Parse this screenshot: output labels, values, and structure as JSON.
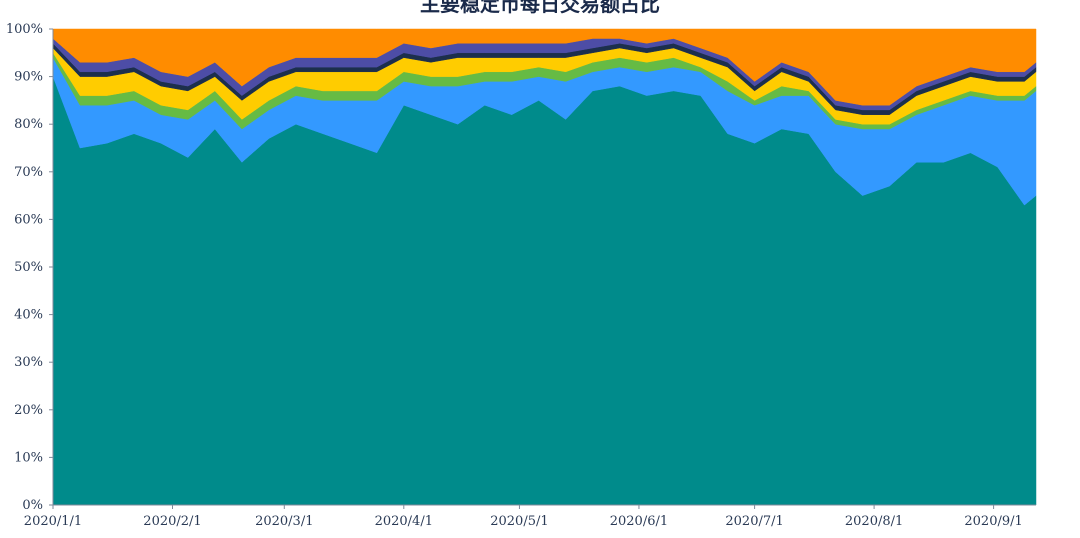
{
  "chart_data": {
    "type": "area",
    "stacked": "percent",
    "title": "主要稳定币每日交易额占比",
    "xlabel": "",
    "ylabel": "",
    "ylim": [
      0,
      100
    ],
    "y_ticks": [
      "0%",
      "10%",
      "20%",
      "30%",
      "40%",
      "50%",
      "60%",
      "70%",
      "80%",
      "90%",
      "100%"
    ],
    "x_range": [
      "2020-01-01",
      "2020-09-12"
    ],
    "x_ticks": [
      {
        "date": "2020-01-01",
        "label": "2020/1/1"
      },
      {
        "date": "2020-02-01",
        "label": "2020/2/1"
      },
      {
        "date": "2020-03-01",
        "label": "2020/3/1"
      },
      {
        "date": "2020-04-01",
        "label": "2020/4/1"
      },
      {
        "date": "2020-05-01",
        "label": "2020/5/1"
      },
      {
        "date": "2020-06-01",
        "label": "2020/6/1"
      },
      {
        "date": "2020-07-01",
        "label": "2020/7/1"
      },
      {
        "date": "2020-08-01",
        "label": "2020/8/1"
      },
      {
        "date": "2020-09-01",
        "label": "2020/9/1"
      }
    ],
    "grid": false,
    "legend": "none",
    "x": [
      "2020-01-01",
      "2020-01-08",
      "2020-01-15",
      "2020-01-22",
      "2020-01-29",
      "2020-02-05",
      "2020-02-12",
      "2020-02-19",
      "2020-02-26",
      "2020-03-04",
      "2020-03-11",
      "2020-03-18",
      "2020-03-25",
      "2020-04-01",
      "2020-04-08",
      "2020-04-15",
      "2020-04-22",
      "2020-04-29",
      "2020-05-06",
      "2020-05-13",
      "2020-05-20",
      "2020-05-27",
      "2020-06-03",
      "2020-06-10",
      "2020-06-17",
      "2020-06-24",
      "2020-07-01",
      "2020-07-08",
      "2020-07-15",
      "2020-07-22",
      "2020-07-29",
      "2020-08-05",
      "2020-08-12",
      "2020-08-19",
      "2020-08-26",
      "2020-09-02",
      "2020-09-09",
      "2020-09-12"
    ],
    "series": [
      {
        "color": "#008b8b",
        "values": [
          90,
          75,
          76,
          78,
          76,
          73,
          79,
          72,
          77,
          80,
          78,
          76,
          74,
          84,
          82,
          80,
          84,
          82,
          85,
          81,
          87,
          88,
          86,
          87,
          86,
          78,
          76,
          79,
          78,
          70,
          65,
          67,
          72,
          72,
          74,
          71,
          63,
          65
        ]
      },
      {
        "color": "#3399ff",
        "values": [
          4,
          9,
          8,
          7,
          6,
          8,
          6,
          7,
          6,
          6,
          7,
          9,
          11,
          5,
          6,
          8,
          5,
          7,
          5,
          8,
          4,
          4,
          5,
          5,
          5,
          9,
          8,
          7,
          8,
          10,
          14,
          12,
          10,
          12,
          12,
          14,
          22,
          22
        ]
      },
      {
        "color": "#66bb44",
        "values": [
          1,
          2,
          2,
          2,
          2,
          2,
          2,
          2,
          2,
          2,
          2,
          2,
          2,
          2,
          2,
          2,
          2,
          2,
          2,
          2,
          2,
          2,
          2,
          2,
          1,
          2,
          1,
          2,
          1,
          1,
          1,
          1,
          1,
          1,
          1,
          1,
          1,
          1
        ]
      },
      {
        "color": "#ffcc00",
        "values": [
          1,
          4,
          4,
          4,
          4,
          4,
          3,
          4,
          4,
          3,
          4,
          4,
          4,
          3,
          3,
          4,
          3,
          3,
          2,
          3,
          2,
          2,
          2,
          2,
          2,
          3,
          2,
          3,
          2,
          2,
          2,
          2,
          3,
          3,
          3,
          3,
          3,
          3
        ]
      },
      {
        "color": "#1c2f4d",
        "values": [
          1,
          1,
          1,
          1,
          1,
          1,
          1,
          1,
          1,
          1,
          1,
          1,
          1,
          1,
          1,
          1,
          1,
          1,
          1,
          1,
          1,
          1,
          1,
          1,
          1,
          1,
          1,
          1,
          1,
          1,
          1,
          1,
          1,
          1,
          1,
          1,
          1,
          1
        ]
      },
      {
        "color": "#4d4da6",
        "values": [
          1,
          2,
          2,
          2,
          2,
          2,
          2,
          2,
          2,
          2,
          2,
          2,
          2,
          2,
          2,
          2,
          2,
          2,
          2,
          2,
          2,
          1,
          1,
          1,
          1,
          1,
          1,
          1,
          1,
          1,
          1,
          1,
          1,
          1,
          1,
          1,
          1,
          1
        ]
      },
      {
        "color": "#ff8c00",
        "values": [
          2,
          7,
          7,
          6,
          9,
          10,
          7,
          12,
          8,
          6,
          6,
          6,
          6,
          3,
          4,
          3,
          3,
          3,
          3,
          3,
          2,
          2,
          3,
          2,
          4,
          6,
          11,
          7,
          9,
          15,
          16,
          16,
          12,
          10,
          8,
          9,
          9,
          7
        ]
      }
    ]
  }
}
